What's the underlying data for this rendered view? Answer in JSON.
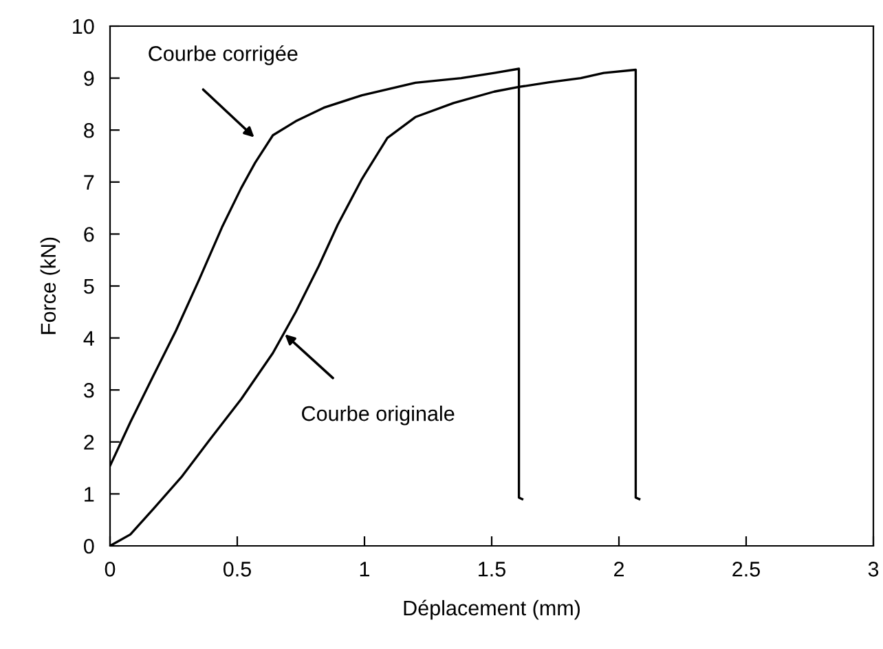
{
  "chart_data": {
    "type": "line",
    "xlabel": "Déplacement (mm)",
    "ylabel": "Force (kN)",
    "xlim": [
      0,
      3
    ],
    "xticks": [
      0,
      0.5,
      1,
      1.5,
      2,
      2.5,
      3
    ],
    "ylim": [
      0,
      10
    ],
    "yticks": [
      0,
      1,
      2,
      3,
      4,
      5,
      6,
      7,
      8,
      9,
      10
    ],
    "grid": false,
    "legend": false,
    "marker": "none",
    "line_style": "solid",
    "series": [
      {
        "color": "#000000",
        "x": [
          0,
          0.08,
          0.17,
          0.26,
          0.35,
          0.44,
          0.515,
          0.57,
          0.64,
          0.73,
          0.84,
          0.99,
          1.2,
          1.38,
          1.51,
          1.607,
          1.607,
          1.62
        ],
        "values": [
          1.54,
          2.38,
          3.27,
          4.15,
          5.12,
          6.13,
          6.88,
          7.37,
          7.9,
          8.17,
          8.43,
          8.67,
          8.91,
          9.0,
          9.1,
          9.18,
          0.93,
          0.9
        ]
      },
      {
        "color": "#000000",
        "x": [
          0,
          0.08,
          0.17,
          0.28,
          0.39,
          0.515,
          0.64,
          0.73,
          0.82,
          0.895,
          0.99,
          1.09,
          1.2,
          1.35,
          1.51,
          1.607,
          1.727,
          1.85,
          1.94,
          2.066,
          2.066,
          2.08
        ],
        "values": [
          0,
          0.22,
          0.71,
          1.32,
          2.03,
          2.82,
          3.71,
          4.5,
          5.38,
          6.18,
          7.06,
          7.85,
          8.25,
          8.52,
          8.74,
          8.83,
          8.92,
          9.0,
          9.1,
          9.16,
          0.93,
          0.9
        ]
      }
    ],
    "annotations": [
      "Courbe corrigée",
      "Courbe originale"
    ]
  }
}
